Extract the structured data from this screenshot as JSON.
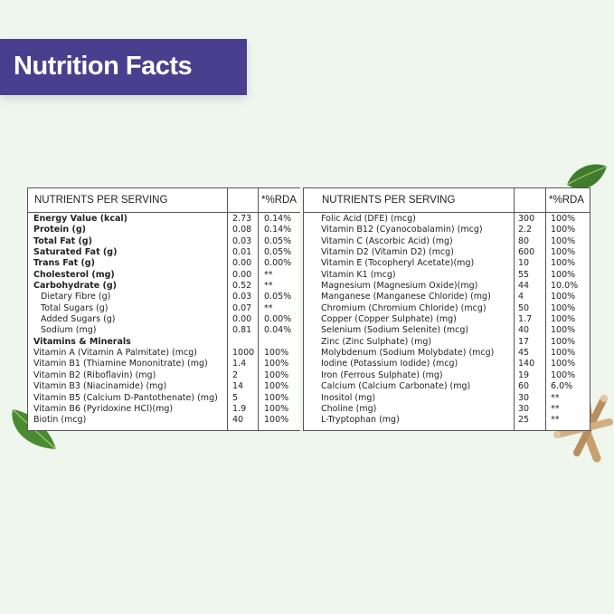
{
  "banner": {
    "title": "Nutrition Facts"
  },
  "table": {
    "left_header": {
      "nutrient": "NUTRIENTS PER SERVING",
      "rda": "*%RDA"
    },
    "right_header": {
      "nutrient": "NUTRIENTS PER SERVING",
      "rda": "*%RDA"
    },
    "left_rows": [
      {
        "name": "Energy Value (kcal)",
        "value": "2.73",
        "rda": "0.14%",
        "bold": true,
        "indent": false
      },
      {
        "name": "Protein (g)",
        "value": "0.08",
        "rda": "0.14%",
        "bold": true,
        "indent": false
      },
      {
        "name": "Total Fat (g)",
        "value": "0.03",
        "rda": "0.05%",
        "bold": true,
        "indent": false
      },
      {
        "name": "Saturated Fat (g)",
        "value": "0.01",
        "rda": "0.05%",
        "bold": true,
        "indent": false
      },
      {
        "name": "Trans Fat (g)",
        "value": "0.00",
        "rda": "0.00%",
        "bold": true,
        "indent": false
      },
      {
        "name": "Cholesterol (mg)",
        "value": "0.00",
        "rda": "**",
        "bold": true,
        "indent": false
      },
      {
        "name": "Carbohydrate (g)",
        "value": "0.52",
        "rda": "**",
        "bold": true,
        "indent": false
      },
      {
        "name": "Dietary Fibre (g)",
        "value": "0.03",
        "rda": "0.05%",
        "bold": false,
        "indent": true
      },
      {
        "name": "Total Sugars (g)",
        "value": "0.07",
        "rda": "**",
        "bold": false,
        "indent": true
      },
      {
        "name": "Added Sugars (g)",
        "value": "0.00",
        "rda": "0.00%",
        "bold": false,
        "indent": true
      },
      {
        "name": "Sodium (mg)",
        "value": "0.81",
        "rda": "0.04%",
        "bold": false,
        "indent": true
      },
      {
        "name": "Vitamins & Minerals",
        "value": "",
        "rda": "",
        "bold": true,
        "indent": false
      },
      {
        "name": "Vitamin A (Vitamin A Palmitate) (mcg)",
        "value": "1000",
        "rda": "100%",
        "bold": false,
        "indent": false
      },
      {
        "name": "Vitamin B1 (Thiamine Mononitrate) (mg)",
        "value": "1.4",
        "rda": "100%",
        "bold": false,
        "indent": false
      },
      {
        "name": "Vitamin B2 (Riboflavin) (mg)",
        "value": "2",
        "rda": "100%",
        "bold": false,
        "indent": false
      },
      {
        "name": "Vitamin B3 (Niacinamide) (mg)",
        "value": "14",
        "rda": "100%",
        "bold": false,
        "indent": false
      },
      {
        "name": "Vitamin B5 (Calcium D-Pantothenate) (mg)",
        "value": "5",
        "rda": "100%",
        "bold": false,
        "indent": false
      },
      {
        "name": "Vitamin B6 (Pyridoxine HCl)(mg)",
        "value": "1.9",
        "rda": "100%",
        "bold": false,
        "indent": false
      },
      {
        "name": "Biotin (mcg)",
        "value": "40",
        "rda": "100%",
        "bold": false,
        "indent": false
      }
    ],
    "right_rows": [
      {
        "name": "Folic Acid (DFE) (mcg)",
        "value": "300",
        "rda": "100%"
      },
      {
        "name": "Vitamin B12 (Cyanocobalamin) (mcg)",
        "value": "2.2",
        "rda": "100%"
      },
      {
        "name": "Vitamin C (Ascorbic Acid) (mg)",
        "value": "80",
        "rda": "100%"
      },
      {
        "name": "Vitamin D2 (Vitamin D2) (mcg)",
        "value": "600",
        "rda": "100%"
      },
      {
        "name": "Vitamin E (Tocopheryl Acetate)(mg)",
        "value": "10",
        "rda": "100%"
      },
      {
        "name": "Vitamin K1 (mcg)",
        "value": "55",
        "rda": "100%"
      },
      {
        "name": "Magnesium (Magnesium Oxide)(mg)",
        "value": "44",
        "rda": "10.0%"
      },
      {
        "name": "Manganese (Manganese Chloride) (mg)",
        "value": "4",
        "rda": "100%"
      },
      {
        "name": "Chromium (Chromium Chloride) (mcg)",
        "value": "50",
        "rda": "100%"
      },
      {
        "name": "Copper (Copper Sulphate) (mg)",
        "value": "1.7",
        "rda": "100%"
      },
      {
        "name": "Selenium (Sodium Selenite)  (mcg)",
        "value": "40",
        "rda": "100%"
      },
      {
        "name": "Zinc (Zinc Sulphate) (mg)",
        "value": "17",
        "rda": "100%"
      },
      {
        "name": "Molybdenum (Sodium Molybdate) (mcg)",
        "value": "45",
        "rda": "100%"
      },
      {
        "name": "Iodine (Potassium Iodide) (mcg)",
        "value": "140",
        "rda": "100%"
      },
      {
        "name": "Iron (Ferrous Sulphate) (mg)",
        "value": "19",
        "rda": "100%"
      },
      {
        "name": "Calcium (Calcium Carbonate) (mg)",
        "value": "60",
        "rda": "6.0%"
      },
      {
        "name": "Inositol (mg)",
        "value": "30",
        "rda": "**"
      },
      {
        "name": "Choline (mg)",
        "value": "30",
        "rda": "**"
      },
      {
        "name": "L-Tryptophan (mg)",
        "value": "25",
        "rda": "**"
      }
    ]
  },
  "decorations": {
    "icons": [
      "leaf-icon",
      "leaf-icon",
      "licorice-root-icon"
    ]
  },
  "colors": {
    "banner": "#4a3f8e",
    "background": "#eef6ee",
    "leaf": "#3f7d2c",
    "root": "#c7a070"
  }
}
